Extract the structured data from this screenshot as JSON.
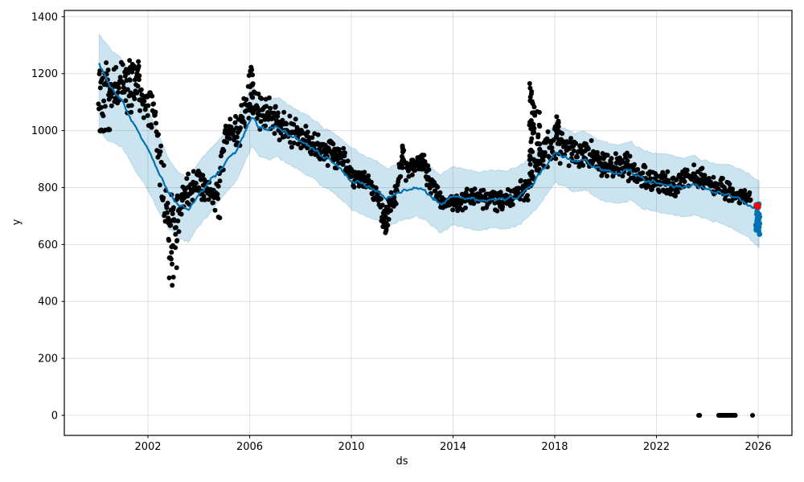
{
  "figure": {
    "kind": "prophet-forecast-plot",
    "background": "#ffffff"
  },
  "chart_data": {
    "type": "line",
    "subtype": "forecast-line-with-uncertainty-band-and-scatter",
    "title": "",
    "xlabel": "ds",
    "ylabel": "y",
    "xlim": [
      1998.71,
      2027.33
    ],
    "ylim": [
      -70.5,
      1422
    ],
    "x_ticks": [
      2002,
      2006,
      2010,
      2014,
      2018,
      2022,
      2026
    ],
    "y_ticks": [
      0,
      200,
      400,
      600,
      800,
      1000,
      1200,
      1400
    ],
    "grid": true,
    "legend": false,
    "colors": {
      "forecast_line": "#0072B2",
      "band_fill": "rgba(0,114,178,0.2)",
      "band_edge": "rgba(0,114,178,0.18)",
      "actuals": "#000000",
      "highlight": "#ff0000",
      "grid": "rgba(176,176,176,0.4)",
      "spine": "#000000"
    },
    "forecast": {
      "comment": "keypoints: [year, yhat, lower, upper] of forecast line and uncertainty interval",
      "keypoints": [
        [
          2000.08,
          1236,
          990,
          1340
        ],
        [
          2000.5,
          1150,
          960,
          1290
        ],
        [
          2001.0,
          1105,
          940,
          1250
        ],
        [
          2001.5,
          1010,
          860,
          1160
        ],
        [
          2001.95,
          945,
          800,
          1090
        ],
        [
          2002.4,
          855,
          720,
          990
        ],
        [
          2002.8,
          785,
          660,
          905
        ],
        [
          2003.2,
          740,
          625,
          855
        ],
        [
          2003.6,
          720,
          610,
          835
        ],
        [
          2004.0,
          775,
          665,
          890
        ],
        [
          2004.5,
          828,
          720,
          940
        ],
        [
          2005.0,
          880,
          775,
          990
        ],
        [
          2005.5,
          935,
          830,
          1045
        ],
        [
          2005.95,
          1020,
          915,
          1130
        ],
        [
          2006.1,
          1048,
          945,
          1155
        ],
        [
          2006.4,
          1010,
          905,
          1120
        ],
        [
          2006.8,
          1000,
          895,
          1110
        ],
        [
          2007.1,
          1012,
          908,
          1118
        ],
        [
          2007.5,
          985,
          880,
          1090
        ],
        [
          2008.0,
          962,
          858,
          1068
        ],
        [
          2008.5,
          935,
          830,
          1040
        ],
        [
          2009.0,
          900,
          795,
          1005
        ],
        [
          2009.5,
          875,
          770,
          980
        ],
        [
          2010.0,
          828,
          725,
          940
        ],
        [
          2010.5,
          808,
          705,
          912
        ],
        [
          2011.0,
          790,
          688,
          893
        ],
        [
          2011.4,
          762,
          660,
          865
        ],
        [
          2011.8,
          780,
          678,
          883
        ],
        [
          2012.2,
          792,
          690,
          895
        ],
        [
          2012.6,
          800,
          698,
          903
        ],
        [
          2013.0,
          782,
          680,
          885
        ],
        [
          2013.5,
          740,
          640,
          843
        ],
        [
          2014.0,
          772,
          670,
          875
        ],
        [
          2014.5,
          762,
          660,
          865
        ],
        [
          2015.0,
          752,
          650,
          855
        ],
        [
          2015.5,
          760,
          658,
          862
        ],
        [
          2016.0,
          755,
          653,
          858
        ],
        [
          2016.5,
          768,
          665,
          870
        ],
        [
          2017.0,
          800,
          698,
          903
        ],
        [
          2017.5,
          855,
          752,
          958
        ],
        [
          2018.0,
          920,
          818,
          1023
        ],
        [
          2018.4,
          905,
          802,
          1008
        ],
        [
          2018.8,
          888,
          785,
          990
        ],
        [
          2019.2,
          895,
          792,
          998
        ],
        [
          2019.6,
          870,
          768,
          973
        ],
        [
          2020.0,
          858,
          755,
          960
        ],
        [
          2020.5,
          848,
          745,
          950
        ],
        [
          2021.0,
          858,
          755,
          960
        ],
        [
          2021.5,
          828,
          725,
          930
        ],
        [
          2022.0,
          818,
          715,
          920
        ],
        [
          2022.5,
          810,
          707,
          912
        ],
        [
          2023.0,
          800,
          697,
          902
        ],
        [
          2023.5,
          808,
          705,
          910
        ],
        [
          2024.0,
          790,
          687,
          892
        ],
        [
          2024.5,
          780,
          677,
          882
        ],
        [
          2025.0,
          772,
          655,
          875
        ],
        [
          2025.5,
          748,
          630,
          855
        ],
        [
          2025.9,
          722,
          600,
          830
        ],
        [
          2026.07,
          708,
          588,
          822
        ]
      ]
    },
    "actuals": {
      "comment": "black dots: dense series approximated by trend [year, center, halfspread] sampled weekly",
      "range": [
        2000.05,
        2025.72
      ],
      "step": 0.0192,
      "trend": [
        [
          2000.05,
          1120,
          125
        ],
        [
          2000.6,
          1160,
          95
        ],
        [
          2001.1,
          1160,
          100
        ],
        [
          2001.6,
          1150,
          110
        ],
        [
          2002.0,
          1090,
          80
        ],
        [
          2002.3,
          1050,
          70
        ],
        [
          2002.55,
          800,
          160
        ],
        [
          2002.9,
          680,
          120
        ],
        [
          2003.2,
          700,
          110
        ],
        [
          2003.5,
          790,
          70
        ],
        [
          2003.9,
          820,
          55
        ],
        [
          2004.3,
          800,
          70
        ],
        [
          2004.7,
          760,
          80
        ],
        [
          2005.1,
          1000,
          80
        ],
        [
          2005.5,
          1010,
          90
        ],
        [
          2005.9,
          1080,
          90
        ],
        [
          2006.1,
          1110,
          100
        ],
        [
          2006.5,
          1060,
          70
        ],
        [
          2007.0,
          1040,
          70
        ],
        [
          2007.5,
          1000,
          60
        ],
        [
          2008.0,
          975,
          55
        ],
        [
          2008.6,
          950,
          55
        ],
        [
          2009.2,
          920,
          55
        ],
        [
          2009.7,
          895,
          50
        ],
        [
          2010.1,
          835,
          45
        ],
        [
          2010.6,
          822,
          40
        ],
        [
          2011.1,
          760,
          70
        ],
        [
          2011.35,
          700,
          65
        ],
        [
          2011.7,
          760,
          50
        ],
        [
          2012.0,
          880,
          75
        ],
        [
          2012.4,
          880,
          45
        ],
        [
          2012.8,
          880,
          45
        ],
        [
          2013.1,
          820,
          45
        ],
        [
          2013.6,
          745,
          40
        ],
        [
          2014.2,
          745,
          40
        ],
        [
          2014.8,
          765,
          45
        ],
        [
          2015.4,
          755,
          40
        ],
        [
          2016.0,
          755,
          40
        ],
        [
          2016.6,
          775,
          45
        ],
        [
          2016.95,
          810,
          60
        ],
        [
          2017.3,
          880,
          70
        ],
        [
          2017.7,
          930,
          70
        ],
        [
          2018.1,
          960,
          70
        ],
        [
          2018.5,
          930,
          70
        ],
        [
          2019.0,
          910,
          60
        ],
        [
          2019.4,
          930,
          55
        ],
        [
          2019.8,
          890,
          55
        ],
        [
          2020.3,
          870,
          55
        ],
        [
          2020.8,
          880,
          55
        ],
        [
          2021.3,
          855,
          50
        ],
        [
          2021.8,
          830,
          50
        ],
        [
          2022.3,
          820,
          45
        ],
        [
          2022.8,
          805,
          45
        ],
        [
          2023.3,
          845,
          45
        ],
        [
          2023.8,
          830,
          45
        ],
        [
          2024.3,
          810,
          45
        ],
        [
          2024.8,
          790,
          40
        ],
        [
          2025.3,
          770,
          35
        ],
        [
          2025.7,
          760,
          30
        ]
      ],
      "outlier_clusters": [
        {
          "x0": 2000.05,
          "x1": 2000.55,
          "y0": 995,
          "y1": 1008,
          "n": 9
        },
        {
          "x0": 2001.25,
          "x1": 2001.75,
          "y0": 1180,
          "y1": 1255,
          "n": 16
        },
        {
          "x0": 2002.8,
          "x1": 2003.15,
          "y0": 452,
          "y1": 620,
          "n": 16
        },
        {
          "x0": 2004.75,
          "x1": 2004.85,
          "y0": 693,
          "y1": 700,
          "n": 2
        },
        {
          "x0": 2005.95,
          "x1": 2006.15,
          "y0": 1150,
          "y1": 1228,
          "n": 10
        },
        {
          "x0": 2011.25,
          "x1": 2011.45,
          "y0": 633,
          "y1": 700,
          "n": 10
        },
        {
          "x0": 2011.95,
          "x1": 2012.1,
          "y0": 880,
          "y1": 952,
          "n": 10
        },
        {
          "x0": 2012.7,
          "x1": 2012.9,
          "y0": 880,
          "y1": 915,
          "n": 5
        },
        {
          "x0": 2017.0,
          "x1": 2017.12,
          "y0": 880,
          "y1": 1185,
          "n": 26
        },
        {
          "x0": 2017.12,
          "x1": 2017.22,
          "y0": 950,
          "y1": 1100,
          "n": 10
        },
        {
          "x0": 2017.3,
          "x1": 2017.42,
          "y0": 850,
          "y1": 1070,
          "n": 16
        },
        {
          "x0": 2018.0,
          "x1": 2018.35,
          "y0": 990,
          "y1": 1050,
          "n": 8
        }
      ],
      "zero_value_points": [
        2023.66,
        2023.7,
        2024.45,
        2024.48,
        2024.51,
        2024.54,
        2024.57,
        2024.6,
        2024.63,
        2024.66,
        2024.69,
        2024.72,
        2024.75,
        2024.78,
        2024.82,
        2024.86,
        2024.9,
        2024.95,
        2025.0,
        2025.05,
        2025.1,
        2025.78
      ]
    },
    "forecast_tail_cluster": {
      "comment": "dense blue forecast points at the end of the series",
      "x0": 2025.9,
      "x1": 2026.06,
      "y0": 635,
      "y1": 745,
      "n": 28
    },
    "highlight_point": {
      "x": 2025.97,
      "y": 735,
      "radius": 4.5
    },
    "render": {
      "seed": 20260131,
      "line_width": 2.2,
      "line_noise": 9,
      "band_noise": 10,
      "sample_step": 0.055,
      "dot_radius": 3.0,
      "tail_dot_radius": 3.4
    }
  }
}
